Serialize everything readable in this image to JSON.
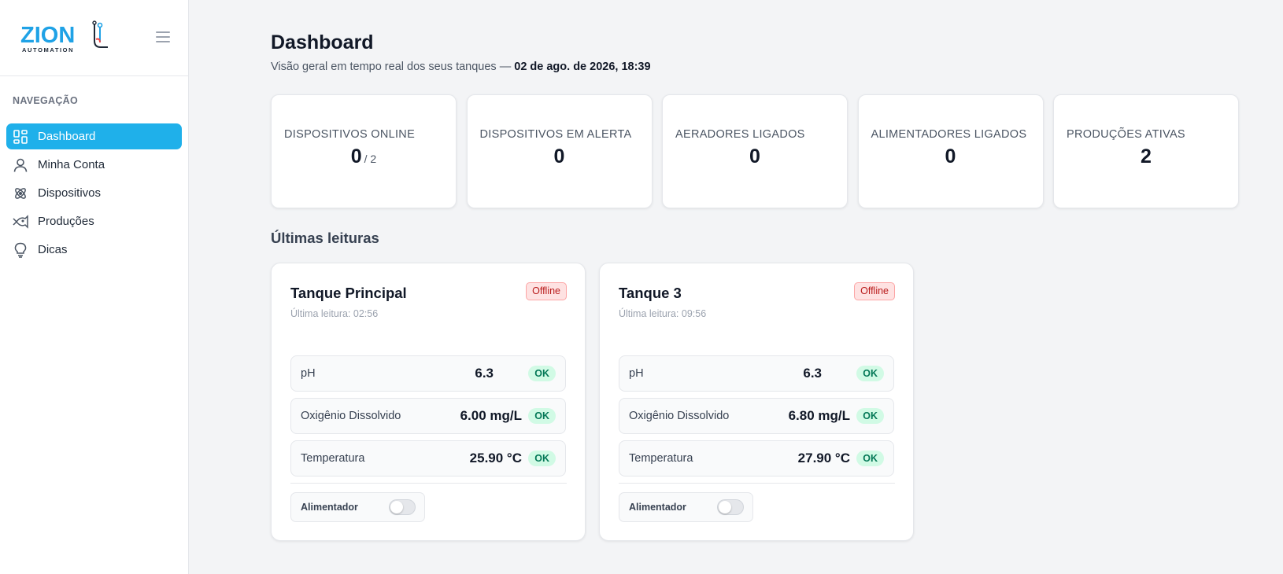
{
  "brand": {
    "name": "ZION",
    "tagline": "AUTOMATION"
  },
  "sidebar": {
    "section_title": "NAVEGAÇÃO",
    "items": [
      {
        "label": "Dashboard",
        "icon": "dashboard-icon",
        "active": true
      },
      {
        "label": "Minha Conta",
        "icon": "user-icon",
        "active": false
      },
      {
        "label": "Dispositivos",
        "icon": "atom-icon",
        "active": false
      },
      {
        "label": "Produções",
        "icon": "fish-icon",
        "active": false
      },
      {
        "label": "Dicas",
        "icon": "lightbulb-icon",
        "active": false
      }
    ]
  },
  "header": {
    "title": "Dashboard",
    "subtitle_prefix": "Visão geral em tempo real dos seus tanques —",
    "datetime": "02 de ago. de 2026, 18:39"
  },
  "stats": [
    {
      "label": "DISPOSITIVOS ONLINE",
      "value": "0",
      "sub": "/ 2"
    },
    {
      "label": "DISPOSITIVOS EM ALERTA",
      "value": "0",
      "sub": ""
    },
    {
      "label": "AERADORES LIGADOS",
      "value": "0",
      "sub": ""
    },
    {
      "label": "ALIMENTADORES LIGADOS",
      "value": "0",
      "sub": ""
    },
    {
      "label": "PRODUÇÕES ATIVAS",
      "value": "2",
      "sub": ""
    }
  ],
  "readings_section": {
    "title": "Últimas leituras",
    "tanks": [
      {
        "name": "Tanque Principal",
        "status": "Offline",
        "last_reading": "Última leitura: 02:56",
        "readings": [
          {
            "label": "pH",
            "value": "6.3",
            "status": "OK"
          },
          {
            "label": "Oxigênio Dissolvido",
            "value": "6.00 mg/L",
            "status": "OK"
          },
          {
            "label": "Temperatura",
            "value": "25.90 °C",
            "status": "OK"
          }
        ],
        "feeder_label": "Alimentador",
        "feeder_on": false
      },
      {
        "name": "Tanque 3",
        "status": "Offline",
        "last_reading": "Última leitura: 09:56",
        "readings": [
          {
            "label": "pH",
            "value": "6.3",
            "status": "OK"
          },
          {
            "label": "Oxigênio Dissolvido",
            "value": "6.80 mg/L",
            "status": "OK"
          },
          {
            "label": "Temperatura",
            "value": "27.90 °C",
            "status": "OK"
          }
        ],
        "feeder_label": "Alimentador",
        "feeder_on": false
      }
    ]
  },
  "colors": {
    "accent": "#1fb0ea",
    "ok": "#047857",
    "offline": "#b91c1c"
  }
}
